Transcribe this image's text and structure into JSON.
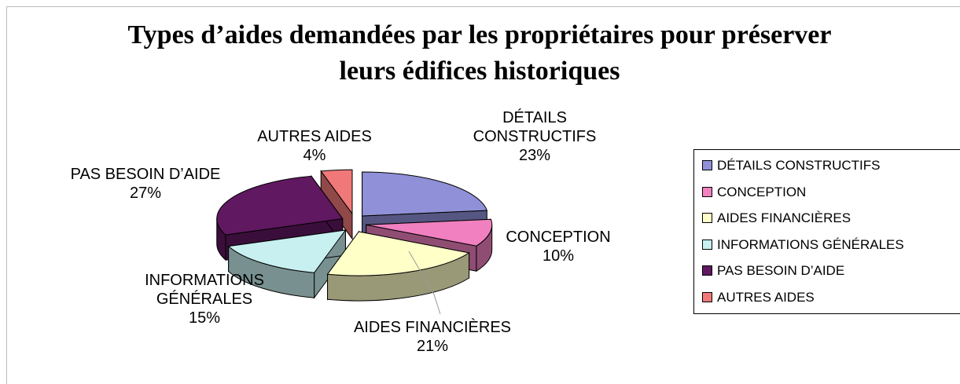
{
  "chart_data": {
    "type": "pie",
    "title": "Types d’aides demandées par les propriétaires pour préserver leurs édifices historiques",
    "categories": [
      "DÉTAILS CONSTRUCTIFS",
      "CONCEPTION",
      "AIDES FINANCIÈRES",
      "INFORMATIONS GÉNÉRALES",
      "PAS BESOIN D’AIDE",
      "AUTRES AIDES"
    ],
    "values": [
      23,
      10,
      21,
      15,
      27,
      4
    ],
    "value_labels": [
      "23%",
      "10%",
      "21%",
      "15%",
      "27%",
      "4%"
    ],
    "colors": [
      "#9090d8",
      "#f080c0",
      "#ffffc8",
      "#c8f0f0",
      "#601860",
      "#f07878"
    ],
    "legend": "right"
  }
}
